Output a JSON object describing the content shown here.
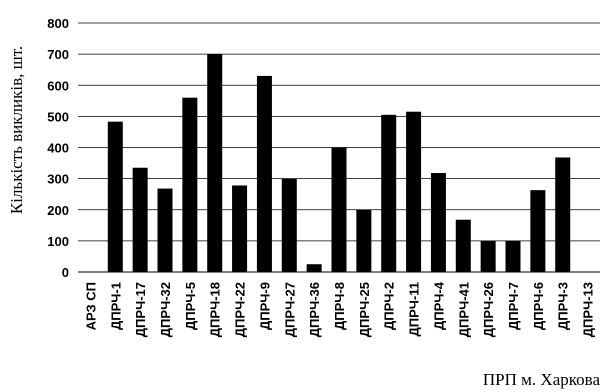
{
  "chart_data": {
    "type": "bar",
    "title": "",
    "xlabel": "ПРП м. Харкова",
    "ylabel": "Кількість викликів, шт.",
    "ylim": [
      0,
      800
    ],
    "yticks": [
      0,
      100,
      200,
      300,
      400,
      500,
      600,
      700,
      800
    ],
    "grid": true,
    "legend": "none",
    "bar_color": "#000000",
    "categories": [
      "АРЗ СП",
      "ДПРЧ-1",
      "ДПРЧ-17",
      "ДПРЧ-32",
      "ДПРЧ-5",
      "ДПРЧ-18",
      "ДПРЧ-22",
      "ДПРЧ-9",
      "ДПРЧ-27",
      "ДПРЧ-36",
      "ДПРЧ-8",
      "ДПРЧ-25",
      "ДПРЧ-2",
      "ДПРЧ-11",
      "ДПРЧ-4",
      "ДПРЧ-41",
      "ДПРЧ-26",
      "ДПРЧ-7",
      "ДПРЧ-6",
      "ДПРЧ-3",
      "ДПРЧ-13"
    ],
    "values": [
      0,
      483,
      335,
      268,
      560,
      700,
      278,
      630,
      300,
      25,
      400,
      200,
      505,
      515,
      318,
      168,
      100,
      100,
      263,
      368,
      0
    ]
  }
}
